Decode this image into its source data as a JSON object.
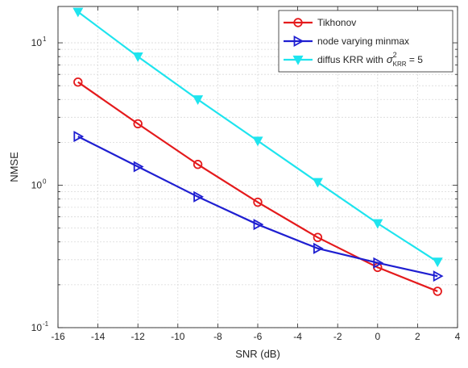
{
  "chart_data": {
    "type": "line",
    "xlabel": "SNR (dB)",
    "ylabel": "NMSE",
    "xlim": [
      -16,
      4
    ],
    "ylim": [
      0.1,
      18
    ],
    "yscale": "log",
    "grid": true,
    "legend_position": "top-right",
    "x_ticks": [
      -16,
      -14,
      -12,
      -10,
      -8,
      -6,
      -4,
      -2,
      0,
      2,
      4
    ],
    "x_tick_labels": [
      "-16",
      "-14",
      "-12",
      "-10",
      "-8",
      "-6",
      "-4",
      "-2",
      "0",
      "2",
      "4"
    ],
    "y_ticks": [
      {
        "value": 0.1,
        "base": "10",
        "exp": "-1"
      },
      {
        "value": 1,
        "base": "10",
        "exp": "0"
      },
      {
        "value": 10,
        "base": "10",
        "exp": "1"
      }
    ],
    "series": [
      {
        "name": "Tikhonov",
        "color": "#e41a1c",
        "marker": "circle",
        "x": [
          -15,
          -12,
          -9,
          -6,
          -3,
          0,
          3
        ],
        "y": [
          5.3,
          2.7,
          1.4,
          0.76,
          0.43,
          0.265,
          0.18
        ]
      },
      {
        "name": "node varying minmax",
        "color": "#1f1fd1",
        "marker": "triangle-right",
        "x": [
          -15,
          -12,
          -9,
          -6,
          -3,
          0,
          3
        ],
        "y": [
          2.2,
          1.35,
          0.83,
          0.53,
          0.36,
          0.285,
          0.23
        ]
      },
      {
        "name": "diffus KRR with",
        "name_math": {
          "sigma": "σ",
          "sup": "2",
          "sub": "KRR",
          "rest": " = 5"
        },
        "color": "#1ee4ee",
        "marker": "triangle-down",
        "x": [
          -15,
          -12,
          -9,
          -6,
          -3,
          0,
          3
        ],
        "y": [
          16.5,
          8.0,
          4.0,
          2.05,
          1.05,
          0.54,
          0.29
        ]
      }
    ]
  }
}
